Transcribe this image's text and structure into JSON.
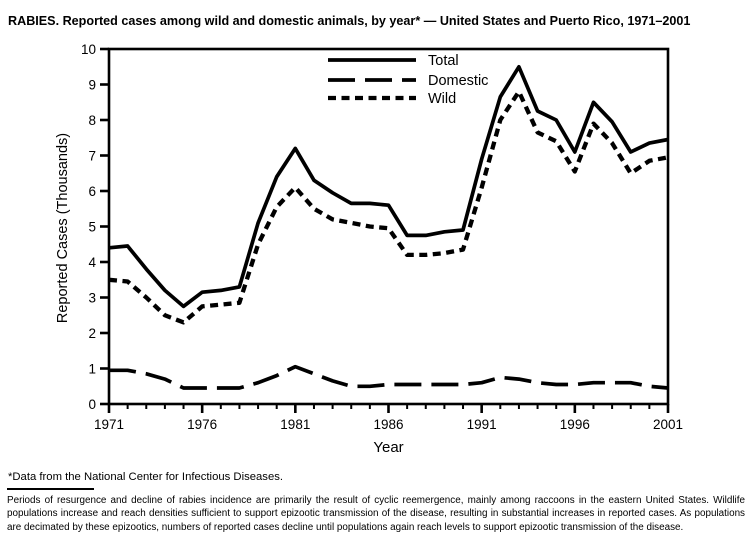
{
  "title": "RABIES. Reported cases among wild and domestic animals, by year* — United States and Puerto Rico, 1971–2001",
  "footnote": "*Data from the National Center for Infectious Diseases.",
  "caption": "Periods of resurgence and decline of rabies incidence are primarily the result of cyclic reemergence, mainly among raccoons in the eastern United States. Wildlife populations increase and reach densities sufficient to support epizootic transmission of the disease, resulting in substantial increases in reported cases. As populations are decimated by these epizootics, numbers of reported cases decline until populations again reach levels to support epizootic transmission of the disease.",
  "chart_data": {
    "type": "line",
    "title": "RABIES. Reported cases among wild and domestic animals, by year — United States and Puerto Rico, 1971–2001",
    "xlabel": "Year",
    "ylabel": "Reported Cases (Thousands)",
    "xlim": [
      1971,
      2001
    ],
    "ylim": [
      0,
      10
    ],
    "grid": false,
    "legend_position": "top-center-inside",
    "x_tick_labels": [
      1971,
      1976,
      1981,
      1986,
      1991,
      1996,
      2001
    ],
    "y_ticks": [
      0,
      1,
      2,
      3,
      4,
      5,
      6,
      7,
      8,
      9,
      10
    ],
    "x": [
      1971,
      1972,
      1973,
      1974,
      1975,
      1976,
      1977,
      1978,
      1979,
      1980,
      1981,
      1982,
      1983,
      1984,
      1985,
      1986,
      1987,
      1988,
      1989,
      1990,
      1991,
      1992,
      1993,
      1994,
      1995,
      1996,
      1997,
      1998,
      1999,
      2000,
      2001
    ],
    "series": [
      {
        "name": "Total",
        "style": "solid",
        "values": [
          4.4,
          4.45,
          3.8,
          3.2,
          2.75,
          3.15,
          3.2,
          3.3,
          5.1,
          6.4,
          7.2,
          6.3,
          5.95,
          5.65,
          5.65,
          5.6,
          4.75,
          4.75,
          4.85,
          4.9,
          6.9,
          8.65,
          9.5,
          8.25,
          8.0,
          7.1,
          8.5,
          7.95,
          7.1,
          7.35,
          7.45
        ]
      },
      {
        "name": "Domestic",
        "style": "long-dash",
        "values": [
          0.95,
          0.95,
          0.85,
          0.7,
          0.45,
          0.45,
          0.45,
          0.45,
          0.6,
          0.8,
          1.05,
          0.85,
          0.65,
          0.5,
          0.5,
          0.55,
          0.55,
          0.55,
          0.55,
          0.55,
          0.6,
          0.75,
          0.7,
          0.6,
          0.55,
          0.55,
          0.6,
          0.6,
          0.6,
          0.5,
          0.45
        ]
      },
      {
        "name": "Wild",
        "style": "short-dash",
        "values": [
          3.5,
          3.45,
          3.0,
          2.5,
          2.3,
          2.75,
          2.8,
          2.85,
          4.5,
          5.55,
          6.1,
          5.5,
          5.2,
          5.1,
          5.0,
          4.95,
          4.2,
          4.2,
          4.25,
          4.35,
          6.1,
          8.0,
          8.8,
          7.65,
          7.4,
          6.55,
          7.9,
          7.35,
          6.5,
          6.85,
          6.95
        ]
      }
    ],
    "colors": {
      "line": "#000000",
      "background": "#ffffff"
    }
  }
}
